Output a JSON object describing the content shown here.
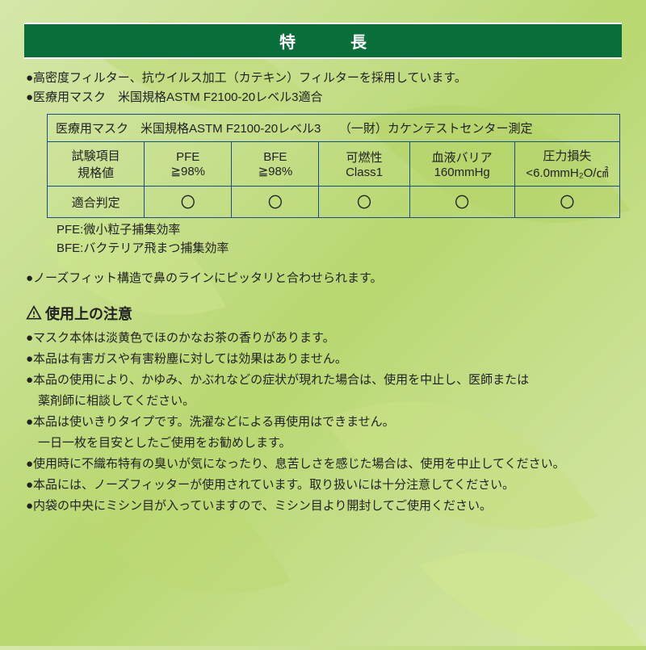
{
  "header": {
    "title": "特　長"
  },
  "features": {
    "line1": "●高密度フィルター、抗ウイルス加工（カテキン）フィルターを採用しています。",
    "line2": "●医療用マスク　米国規格ASTM F2100-20レベル3適合"
  },
  "spec_table": {
    "title": "医療用マスク　米国規格ASTM F2100-20レベル3　　（一財）カケンテストセンター測定",
    "headers": {
      "col0_l1": "試験項目",
      "col0_l2": "規格値",
      "col1_l1": "PFE",
      "col1_l2": "≧98%",
      "col2_l1": "BFE",
      "col2_l2": "≧98%",
      "col3_l1": "可燃性",
      "col3_l2": "Class1",
      "col4_l1": "血液バリア",
      "col4_l2": "160mmHg",
      "col5_l1": "圧力損失",
      "col5_l2": "<6.0mmH₂O/㎠"
    },
    "row_label": "適合判定",
    "result": "〇",
    "col_widths": {
      "c0": "120px",
      "c1": "108px",
      "c2": "108px",
      "c3": "112px",
      "c4": "130px",
      "c5": "130px"
    }
  },
  "abbreviations": {
    "pfe": "PFE:微小粒子捕集効率",
    "bfe": "BFE:バクテリア飛まつ捕集効率"
  },
  "feature3": "●ノーズフィット構造で鼻のラインにピッタリと合わせられます。",
  "caution": {
    "heading": "使用上の注意",
    "items": [
      "●マスク本体は淡黄色でほのかなお茶の香りがあります。",
      "●本品は有害ガスや有害粉塵に対しては効果はありません。",
      "●本品の使用により、かゆみ、かぶれなどの症状が現れた場合は、使用を中止し、医師または",
      "　薬剤師に相談してください。",
      "●本品は使いきりタイプです。洗濯などによる再使用はできません。",
      "　一日一枚を目安としたご使用をお勧めします。",
      "●使用時に不織布特有の臭いが気になったり、息苦しさを感じた場合は、使用を中止してください。",
      "●本品には、ノーズフィッターが使用されています。取り扱いには十分注意してください。",
      "●内袋の中央にミシン目が入っていますので、ミシン目より開封してご使用ください。"
    ]
  },
  "colors": {
    "header_bg": "#0a6e3a",
    "border": "#1a4d8f",
    "text": "#222222"
  }
}
